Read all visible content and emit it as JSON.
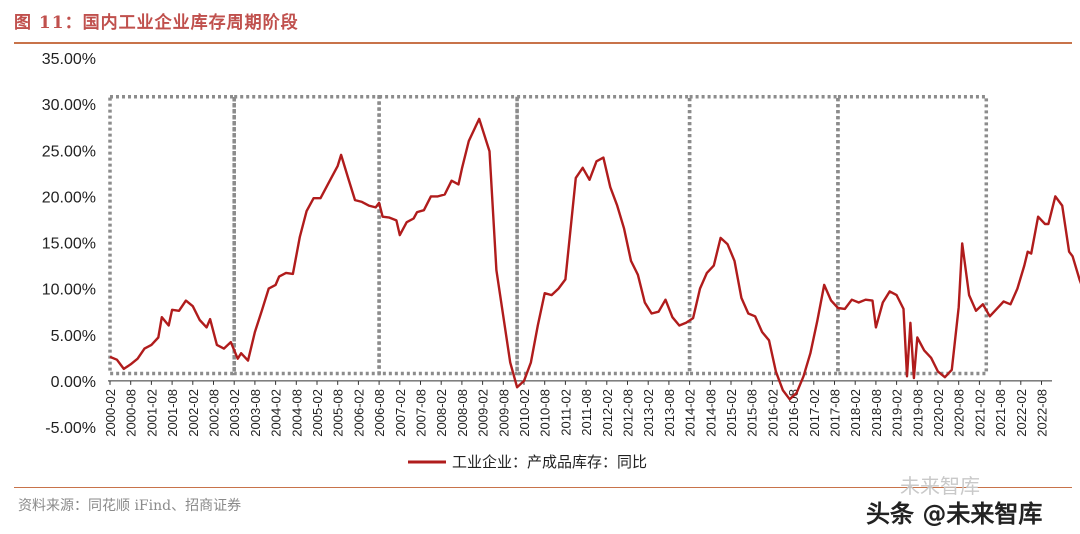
{
  "title": "图 11：国内工业企业库存周期阶段",
  "source": "资料来源：同花顺 iFind、招商证券",
  "watermark": {
    "line1": "未来智库",
    "line2": "头条 @未来智库"
  },
  "colors": {
    "series": "#b01c1c",
    "box": "#8c8c8c",
    "accent": "#c0504d"
  },
  "chart_data": {
    "type": "line",
    "title": "",
    "xlabel": "",
    "ylabel": "",
    "ylim": [
      -5,
      35
    ],
    "yticks": [
      -5,
      0,
      5,
      10,
      15,
      20,
      25,
      30,
      35
    ],
    "ytick_labels": [
      "-5.00%",
      "0.00%",
      "5.00%",
      "10.00%",
      "15.00%",
      "20.00%",
      "25.00%",
      "30.00%",
      "35.00%"
    ],
    "xrange": [
      "2000-02",
      "2022-12"
    ],
    "xtick_labels": [
      "2000-02",
      "2000-08",
      "2001-02",
      "2001-08",
      "2002-02",
      "2002-08",
      "2003-02",
      "2003-08",
      "2004-02",
      "2004-08",
      "2005-02",
      "2005-08",
      "2006-02",
      "2006-08",
      "2007-02",
      "2007-08",
      "2008-02",
      "2008-08",
      "2009-02",
      "2009-08",
      "2010-02",
      "2010-08",
      "2011-02",
      "2011-08",
      "2012-02",
      "2012-08",
      "2013-02",
      "2013-08",
      "2014-02",
      "2014-08",
      "2015-02",
      "2015-08",
      "2016-02",
      "2016-08",
      "2017-02",
      "2017-08",
      "2018-02",
      "2018-08",
      "2019-02",
      "2019-08",
      "2020-02",
      "2020-08",
      "2021-02",
      "2021-08",
      "2022-02",
      "2022-08"
    ],
    "legend": "bottom",
    "grid": false,
    "series": [
      {
        "name": "工业企业：产成品库存：同比",
        "points": [
          [
            "2000-02",
            2.6
          ],
          [
            "2000-04",
            2.3
          ],
          [
            "2000-06",
            1.3
          ],
          [
            "2000-08",
            1.8
          ],
          [
            "2000-10",
            2.4
          ],
          [
            "2000-12",
            3.5
          ],
          [
            "2001-02",
            3.9
          ],
          [
            "2001-04",
            4.7
          ],
          [
            "2001-05",
            6.9
          ],
          [
            "2001-07",
            6.0
          ],
          [
            "2001-08",
            7.7
          ],
          [
            "2001-10",
            7.6
          ],
          [
            "2001-12",
            8.7
          ],
          [
            "2002-02",
            8.1
          ],
          [
            "2002-04",
            6.6
          ],
          [
            "2002-06",
            5.8
          ],
          [
            "2002-07",
            6.7
          ],
          [
            "2002-09",
            3.9
          ],
          [
            "2002-11",
            3.5
          ],
          [
            "2003-01",
            4.2
          ],
          [
            "2003-03",
            2.4
          ],
          [
            "2003-04",
            3.0
          ],
          [
            "2003-06",
            2.2
          ],
          [
            "2003-08",
            5.3
          ],
          [
            "2003-10",
            7.6
          ],
          [
            "2003-12",
            10.0
          ],
          [
            "2004-02",
            10.4
          ],
          [
            "2004-03",
            11.3
          ],
          [
            "2004-05",
            11.7
          ],
          [
            "2004-07",
            11.6
          ],
          [
            "2004-09",
            15.6
          ],
          [
            "2004-11",
            18.4
          ],
          [
            "2005-01",
            19.8
          ],
          [
            "2005-03",
            19.8
          ],
          [
            "2005-06",
            21.9
          ],
          [
            "2005-08",
            23.3
          ],
          [
            "2005-09",
            24.5
          ],
          [
            "2005-11",
            22.0
          ],
          [
            "2006-01",
            19.6
          ],
          [
            "2006-03",
            19.4
          ],
          [
            "2006-05",
            19.0
          ],
          [
            "2006-07",
            18.8
          ],
          [
            "2006-08",
            19.3
          ],
          [
            "2006-09",
            17.8
          ],
          [
            "2006-11",
            17.7
          ],
          [
            "2007-01",
            17.4
          ],
          [
            "2007-02",
            15.8
          ],
          [
            "2007-04",
            17.2
          ],
          [
            "2007-06",
            17.6
          ],
          [
            "2007-07",
            18.3
          ],
          [
            "2007-09",
            18.5
          ],
          [
            "2007-11",
            20.0
          ],
          [
            "2008-01",
            20.0
          ],
          [
            "2008-03",
            20.2
          ],
          [
            "2008-05",
            21.7
          ],
          [
            "2008-07",
            21.3
          ],
          [
            "2008-08",
            23.0
          ],
          [
            "2008-10",
            26.0
          ],
          [
            "2008-12",
            27.6
          ],
          [
            "2009-01",
            28.4
          ],
          [
            "2009-04",
            24.9
          ],
          [
            "2009-06",
            12.0
          ],
          [
            "2009-08",
            7.0
          ],
          [
            "2009-10",
            2.0
          ],
          [
            "2009-12",
            -0.7
          ],
          [
            "2010-02",
            0.0
          ],
          [
            "2010-04",
            2.0
          ],
          [
            "2010-06",
            6.0
          ],
          [
            "2010-08",
            9.5
          ],
          [
            "2010-10",
            9.3
          ],
          [
            "2010-12",
            10.0
          ],
          [
            "2011-02",
            11.0
          ],
          [
            "2011-05",
            22.0
          ],
          [
            "2011-07",
            23.1
          ],
          [
            "2011-09",
            21.8
          ],
          [
            "2011-11",
            23.8
          ],
          [
            "2012-01",
            24.2
          ],
          [
            "2012-03",
            21.0
          ],
          [
            "2012-05",
            19.0
          ],
          [
            "2012-07",
            16.5
          ],
          [
            "2012-09",
            13.0
          ],
          [
            "2012-11",
            11.5
          ],
          [
            "2013-01",
            8.5
          ],
          [
            "2013-03",
            7.3
          ],
          [
            "2013-05",
            7.5
          ],
          [
            "2013-07",
            8.8
          ],
          [
            "2013-09",
            6.9
          ],
          [
            "2013-11",
            6.0
          ],
          [
            "2014-01",
            6.3
          ],
          [
            "2014-03",
            6.8
          ],
          [
            "2014-05",
            10.0
          ],
          [
            "2014-07",
            11.7
          ],
          [
            "2014-09",
            12.5
          ],
          [
            "2014-11",
            15.5
          ],
          [
            "2015-01",
            14.8
          ],
          [
            "2015-03",
            13.0
          ],
          [
            "2015-05",
            9.0
          ],
          [
            "2015-07",
            7.3
          ],
          [
            "2015-09",
            7.0
          ],
          [
            "2015-11",
            5.3
          ],
          [
            "2016-01",
            4.4
          ],
          [
            "2016-03",
            1.0
          ],
          [
            "2016-05",
            -1.0
          ],
          [
            "2016-07",
            -2.0
          ],
          [
            "2016-09",
            -1.3
          ],
          [
            "2016-11",
            0.5
          ],
          [
            "2017-01",
            3.0
          ],
          [
            "2017-03",
            6.5
          ],
          [
            "2017-05",
            10.4
          ],
          [
            "2017-07",
            8.7
          ],
          [
            "2017-09",
            7.9
          ],
          [
            "2017-11",
            7.8
          ],
          [
            "2018-01",
            8.8
          ],
          [
            "2018-03",
            8.5
          ],
          [
            "2018-05",
            8.8
          ],
          [
            "2018-07",
            8.7
          ],
          [
            "2018-08",
            5.8
          ],
          [
            "2018-10",
            8.5
          ],
          [
            "2018-12",
            9.7
          ],
          [
            "2019-02",
            9.3
          ],
          [
            "2019-04",
            7.8
          ],
          [
            "2019-05",
            0.5
          ],
          [
            "2019-06",
            6.3
          ],
          [
            "2019-07",
            0.3
          ],
          [
            "2019-08",
            4.7
          ],
          [
            "2019-10",
            3.3
          ],
          [
            "2019-12",
            2.5
          ],
          [
            "2020-02",
            1.0
          ],
          [
            "2020-04",
            0.4
          ],
          [
            "2020-06",
            1.2
          ],
          [
            "2020-08",
            8.0
          ],
          [
            "2020-09",
            14.9
          ],
          [
            "2020-11",
            9.3
          ],
          [
            "2021-01",
            7.6
          ],
          [
            "2021-03",
            8.3
          ],
          [
            "2021-05",
            7.0
          ],
          [
            "2021-07",
            7.8
          ],
          [
            "2021-09",
            8.6
          ],
          [
            "2021-11",
            8.3
          ],
          [
            "2022-01",
            10.0
          ],
          [
            "2022-03",
            12.5
          ],
          [
            "2022-04",
            14.0
          ],
          [
            "2022-05",
            13.8
          ],
          [
            "2022-07",
            17.8
          ],
          [
            "2022-09",
            17.0
          ],
          [
            "2022-10",
            17.0
          ],
          [
            "2022-12",
            20.0
          ],
          [
            "2023-02",
            19.0
          ],
          [
            "2023-04",
            14.0
          ],
          [
            "2023-05",
            13.5
          ],
          [
            "2023-07",
            11.0
          ],
          [
            "2023-08",
            10.0
          ]
        ]
      }
    ],
    "annotations": {
      "boxes": [
        {
          "x0": "2000-02",
          "x1": "2003-02",
          "y0": 0.8,
          "y1": 30.8
        },
        {
          "x0": "2003-02",
          "x1": "2006-08",
          "y0": 0.8,
          "y1": 30.8
        },
        {
          "x0": "2006-08",
          "x1": "2009-12",
          "y0": 0.8,
          "y1": 30.8
        },
        {
          "x0": "2009-12",
          "x1": "2014-02",
          "y0": 0.8,
          "y1": 30.8
        },
        {
          "x0": "2014-02",
          "x1": "2017-09",
          "y0": 0.8,
          "y1": 30.8
        },
        {
          "x0": "2017-09",
          "x1": "2021-04",
          "y0": 0.8,
          "y1": 30.8
        }
      ]
    }
  }
}
